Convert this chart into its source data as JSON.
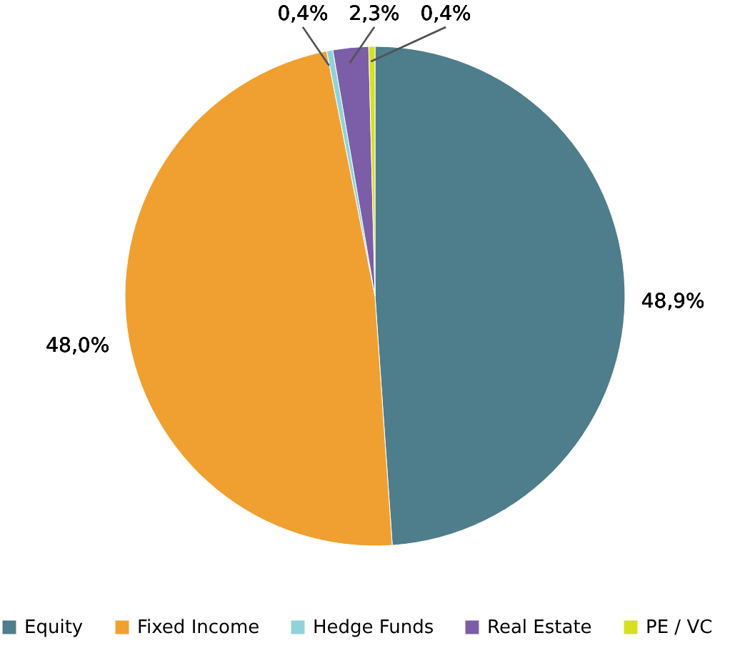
{
  "chart_data": {
    "type": "pie",
    "categories": [
      "Equity",
      "Fixed Income",
      "Hedge Funds",
      "Real Estate",
      "PE / VC"
    ],
    "values": [
      48.9,
      48.0,
      0.4,
      2.3,
      0.4
    ],
    "colors": [
      "#4e7d8c",
      "#f0a030",
      "#8fd3d8",
      "#7b5ea7",
      "#d7e020"
    ],
    "value_labels": [
      "48,9%",
      "48,0%",
      "0,4%",
      "2,3%",
      "0,4%"
    ],
    "legend": "bottom"
  }
}
